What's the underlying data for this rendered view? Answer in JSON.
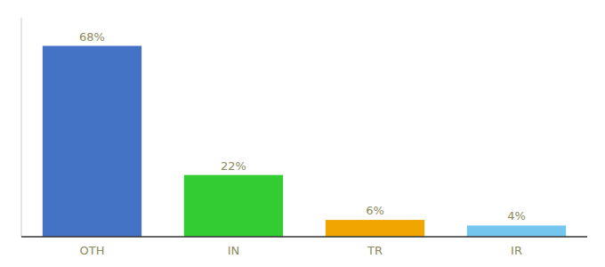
{
  "chart_data": {
    "type": "bar",
    "categories": [
      "OTH",
      "IN",
      "TR",
      "IR"
    ],
    "values": [
      68,
      22,
      6,
      4
    ],
    "value_labels": [
      "68%",
      "22%",
      "6%",
      "4%"
    ],
    "data_labels": true,
    "colors": [
      "#4472c4",
      "#33cc33",
      "#f0a500",
      "#74c6ef"
    ],
    "ylim": [
      0,
      78
    ],
    "grid": false,
    "tick_labels": "x"
  }
}
